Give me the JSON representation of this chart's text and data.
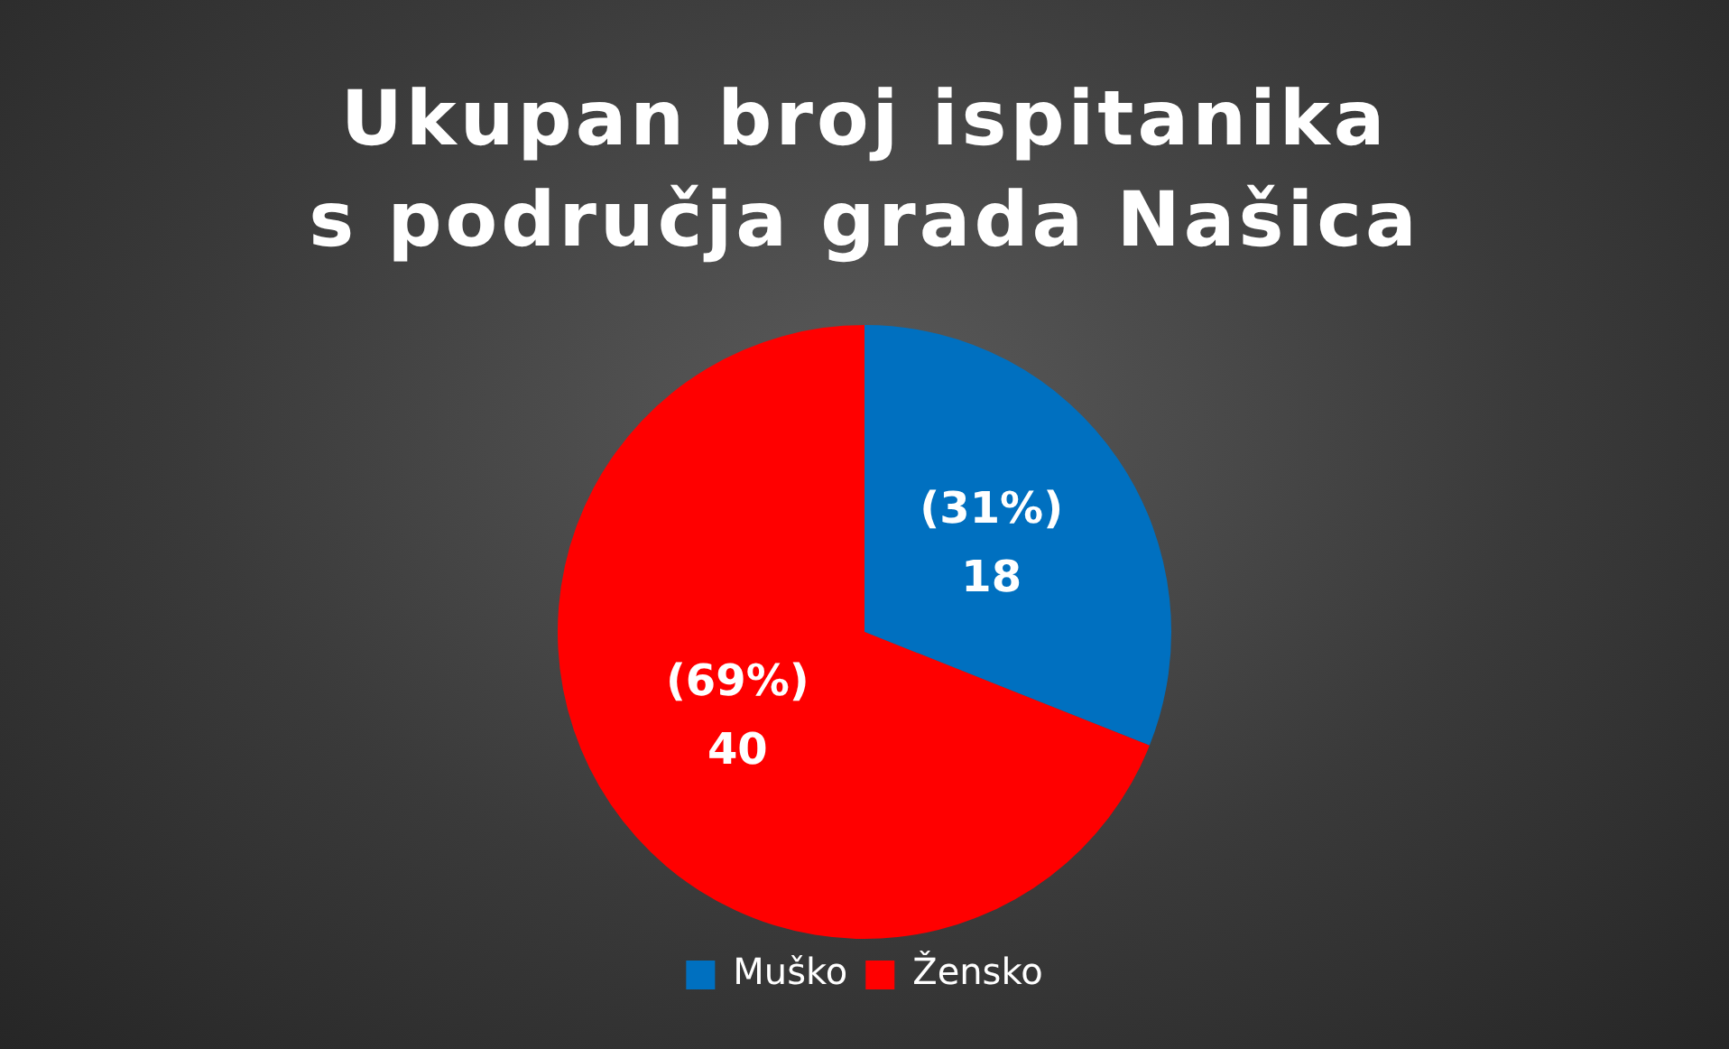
{
  "chart_data": {
    "type": "pie",
    "title": "Ukupan broj ispitanika s područja grada Našica",
    "categories": [
      "Muško",
      "Žensko"
    ],
    "values": [
      18,
      40
    ],
    "colors": [
      "#0070c0",
      "#ff0000"
    ],
    "value_labels": [
      "(31%)\n18",
      "(69%)\n40"
    ],
    "legend": "bottom"
  }
}
